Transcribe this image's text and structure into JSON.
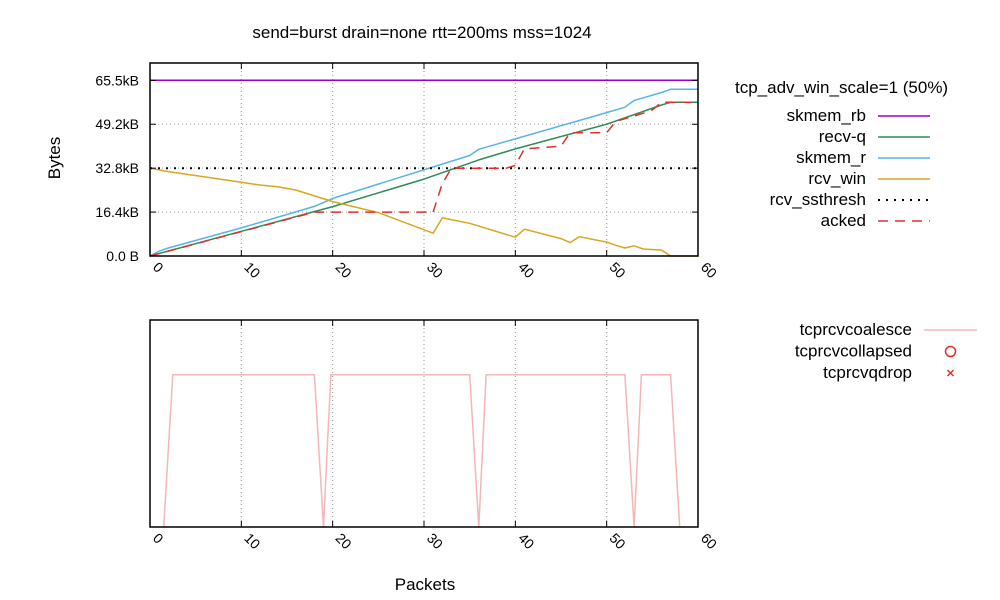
{
  "chart_data": [
    {
      "type": "line",
      "title": "send=burst drain=none rtt=200ms mss=1024",
      "xlabel": "",
      "ylabel": "Bytes",
      "xlim": [
        0,
        60
      ],
      "ylim": [
        0,
        72000
      ],
      "grid": true,
      "x_ticks": [
        0,
        10,
        20,
        30,
        40,
        50,
        60
      ],
      "y_ticks": [
        {
          "value": 0,
          "label": "0.0 B"
        },
        {
          "value": 16384,
          "label": "16.4kB"
        },
        {
          "value": 32768,
          "label": "32.8kB"
        },
        {
          "value": 49152,
          "label": "49.2kB"
        },
        {
          "value": 65536,
          "label": "65.5kB"
        }
      ],
      "legend_title": "tcp_adv_win_scale=1 (50%)",
      "legend_position": "right",
      "series": [
        {
          "name": "skmem_rb",
          "color": "#9400d3",
          "style": "solid",
          "points": [
            [
              0,
              65536
            ],
            [
              60,
              65536
            ]
          ]
        },
        {
          "name": "recv-q",
          "color": "#2e8b57",
          "style": "solid",
          "points": [
            [
              0,
              0
            ],
            [
              10,
              9216
            ],
            [
              20,
              18432
            ],
            [
              30,
              28672
            ],
            [
              36,
              35840
            ],
            [
              40,
              39936
            ],
            [
              50,
              49152
            ],
            [
              56,
              56320
            ],
            [
              57,
              57344
            ],
            [
              60,
              57344
            ]
          ]
        },
        {
          "name": "skmem_r",
          "color": "#56b4e9",
          "style": "solid",
          "points": [
            [
              0,
              0
            ],
            [
              1,
              1800
            ],
            [
              2,
              3000
            ],
            [
              10,
              10500
            ],
            [
              18,
              18500
            ],
            [
              20,
              21500
            ],
            [
              35,
              37500
            ],
            [
              36,
              39800
            ],
            [
              50,
              53500
            ],
            [
              52,
              55500
            ],
            [
              53,
              58000
            ],
            [
              56,
              61000
            ],
            [
              57,
              62200
            ],
            [
              60,
              62200
            ]
          ]
        },
        {
          "name": "rcv_win",
          "color": "#daa520",
          "style": "solid",
          "points": [
            [
              0,
              32768
            ],
            [
              2,
              31500
            ],
            [
              4,
              30500
            ],
            [
              6,
              29500
            ],
            [
              8,
              28500
            ],
            [
              10,
              27500
            ],
            [
              12,
              26500
            ],
            [
              14,
              25800
            ],
            [
              16,
              24600
            ],
            [
              17,
              23500
            ],
            [
              20,
              20300
            ],
            [
              25,
              16200
            ],
            [
              31,
              8500
            ],
            [
              32,
              14200
            ],
            [
              35,
              12200
            ],
            [
              40,
              7000
            ],
            [
              41,
              10000
            ],
            [
              45,
              6500
            ],
            [
              46,
              5000
            ],
            [
              47,
              7200
            ],
            [
              50,
              5200
            ],
            [
              51,
              4000
            ],
            [
              52,
              3000
            ],
            [
              53,
              3800
            ],
            [
              54,
              2600
            ],
            [
              56,
              2200
            ],
            [
              57,
              0
            ],
            [
              60,
              0
            ]
          ]
        },
        {
          "name": "rcv_ssthresh",
          "color": "#000000",
          "style": "dotted",
          "points": [
            [
              0,
              32768
            ],
            [
              60,
              32768
            ]
          ]
        },
        {
          "name": "acked",
          "color": "#e0302b",
          "style": "dashed",
          "points": [
            [
              0,
              0
            ],
            [
              18,
              16384
            ],
            [
              31,
              16384
            ],
            [
              32,
              27000
            ],
            [
              33,
              32768
            ],
            [
              39,
              32768
            ],
            [
              40,
              33800
            ],
            [
              41,
              40000
            ],
            [
              45,
              40960
            ],
            [
              46,
              46000
            ],
            [
              50,
              46000
            ],
            [
              51,
              50200
            ],
            [
              54,
              53248
            ],
            [
              55,
              54500
            ],
            [
              56,
              57344
            ],
            [
              60,
              57344
            ]
          ]
        }
      ]
    },
    {
      "type": "line",
      "title": "",
      "xlabel": "Packets",
      "ylabel": "",
      "xlim": [
        0,
        60
      ],
      "ylim": [
        0,
        1.36
      ],
      "grid": true,
      "x_ticks": [
        0,
        10,
        20,
        30,
        40,
        50,
        60
      ],
      "legend_position": "right",
      "series": [
        {
          "name": "tcprcvcoalesce",
          "color": "#f4b6b6",
          "style": "solid",
          "points": [
            [
              1.5,
              0
            ],
            [
              2.5,
              1
            ],
            [
              18,
              1
            ],
            [
              19,
              0
            ],
            [
              19.8,
              1
            ],
            [
              35,
              1
            ],
            [
              36,
              0
            ],
            [
              36.8,
              1
            ],
            [
              52,
              1
            ],
            [
              53,
              0
            ],
            [
              53.8,
              1
            ],
            [
              57,
              1
            ],
            [
              58,
              0
            ]
          ]
        },
        {
          "name": "tcprcvcollapsed",
          "color": "#e0302b",
          "style": "circle",
          "points": []
        },
        {
          "name": "tcprcvqdrop",
          "color": "#e0302b",
          "style": "cross",
          "points": []
        }
      ]
    }
  ]
}
